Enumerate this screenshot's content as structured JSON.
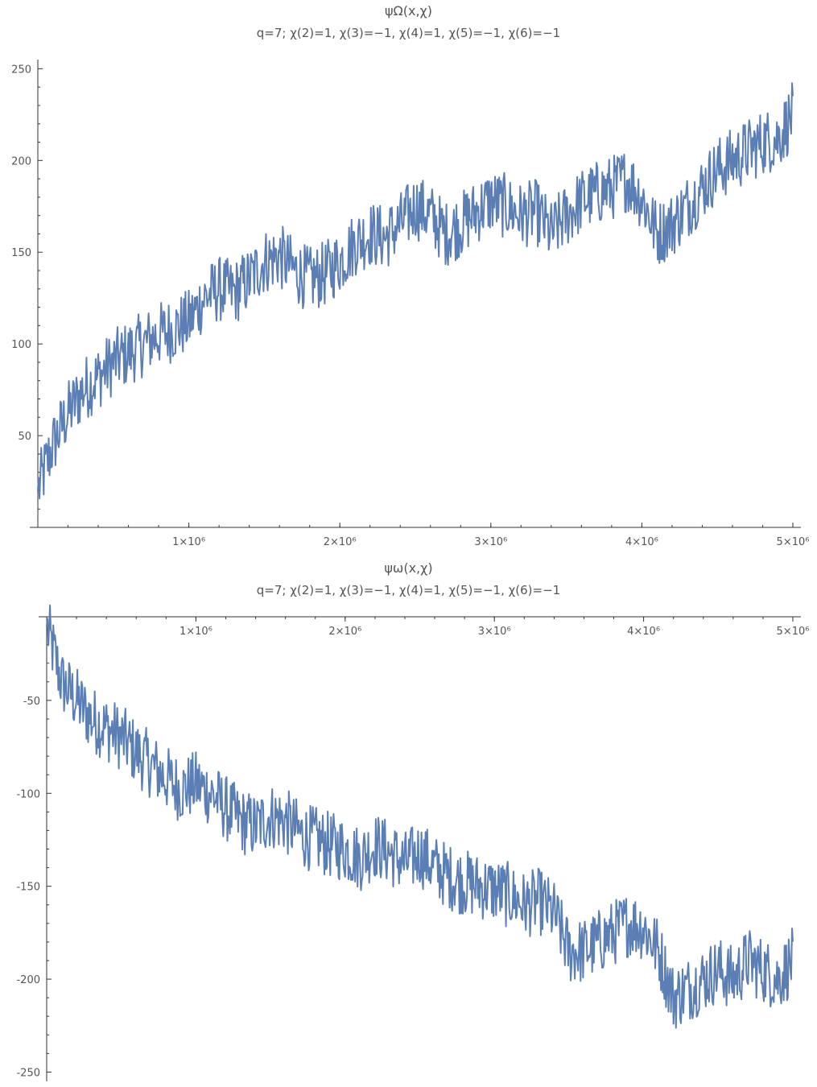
{
  "chart_data": [
    {
      "type": "line",
      "title": "ψΩ(x,χ)",
      "subtitle": "q=7; χ(2)=1, χ(3)=−1, χ(4)=1, χ(5)=−1, χ(6)=−1",
      "xlim": [
        0,
        5000000
      ],
      "ylim": [
        0,
        255
      ],
      "x_ticks": [
        {
          "value": 1000000,
          "label": "1×10⁶"
        },
        {
          "value": 2000000,
          "label": "2×10⁶"
        },
        {
          "value": 3000000,
          "label": "3×10⁶"
        },
        {
          "value": 4000000,
          "label": "4×10⁶"
        },
        {
          "value": 5000000,
          "label": "5×10⁶"
        }
      ],
      "y_ticks": [
        {
          "value": 50,
          "label": "50"
        },
        {
          "value": 100,
          "label": "100"
        },
        {
          "value": 150,
          "label": "150"
        },
        {
          "value": 200,
          "label": "200"
        },
        {
          "value": 250,
          "label": "250"
        }
      ],
      "color": "#5b7fb5",
      "series": [
        {
          "x": [
            0,
            100000,
            200000,
            300000,
            400000,
            500000,
            600000,
            700000,
            800000,
            900000,
            1000000,
            1100000,
            1200000,
            1300000,
            1400000,
            1500000,
            1600000,
            1700000,
            1800000,
            1900000,
            2000000,
            2100000,
            2200000,
            2300000,
            2400000,
            2500000,
            2600000,
            2700000,
            2800000,
            2900000,
            3000000,
            3100000,
            3200000,
            3300000,
            3400000,
            3500000,
            3600000,
            3700000,
            3800000,
            3900000,
            4000000,
            4100000,
            4200000,
            4300000,
            4400000,
            4500000,
            4600000,
            4700000,
            4800000,
            4900000,
            5000000
          ],
          "values": [
            20,
            45,
            62,
            75,
            82,
            90,
            95,
            100,
            105,
            108,
            112,
            125,
            130,
            128,
            135,
            145,
            148,
            140,
            135,
            138,
            145,
            155,
            160,
            158,
            165,
            175,
            170,
            160,
            165,
            172,
            178,
            175,
            170,
            172,
            160,
            170,
            178,
            182,
            185,
            190,
            180,
            160,
            165,
            175,
            185,
            195,
            200,
            205,
            210,
            212,
            225
          ]
        }
      ]
    },
    {
      "type": "line",
      "title": "ψω(x,χ)",
      "subtitle": "q=7; χ(2)=1, χ(3)=−1, χ(4)=1, χ(5)=−1, χ(6)=−1",
      "xlim": [
        0,
        5000000
      ],
      "ylim": [
        -255,
        -5
      ],
      "x_ticks": [
        {
          "value": 1000000,
          "label": "1×10⁶"
        },
        {
          "value": 2000000,
          "label": "2×10⁶"
        },
        {
          "value": 3000000,
          "label": "3×10⁶"
        },
        {
          "value": 4000000,
          "label": "4×10⁶"
        },
        {
          "value": 5000000,
          "label": "5×10⁶"
        }
      ],
      "y_ticks": [
        {
          "value": -50,
          "label": "-50"
        },
        {
          "value": -100,
          "label": "-100"
        },
        {
          "value": -150,
          "label": "-150"
        },
        {
          "value": -200,
          "label": "-200"
        },
        {
          "value": -250,
          "label": "-250"
        }
      ],
      "color": "#5b7fb5",
      "series": [
        {
          "x": [
            0,
            100000,
            200000,
            300000,
            400000,
            500000,
            600000,
            700000,
            800000,
            900000,
            1000000,
            1100000,
            1200000,
            1300000,
            1400000,
            1500000,
            1600000,
            1700000,
            1800000,
            1900000,
            2000000,
            2100000,
            2200000,
            2300000,
            2400000,
            2500000,
            2600000,
            2700000,
            2800000,
            2900000,
            3000000,
            3100000,
            3200000,
            3300000,
            3400000,
            3500000,
            3600000,
            3700000,
            3800000,
            3900000,
            4000000,
            4100000,
            4200000,
            4300000,
            4400000,
            4500000,
            4600000,
            4700000,
            4800000,
            4900000,
            5000000
          ],
          "values": [
            -10,
            -40,
            -50,
            -60,
            -65,
            -70,
            -78,
            -85,
            -92,
            -98,
            -95,
            -100,
            -108,
            -115,
            -118,
            -112,
            -115,
            -122,
            -125,
            -128,
            -130,
            -135,
            -128,
            -132,
            -138,
            -132,
            -140,
            -145,
            -148,
            -150,
            -152,
            -155,
            -160,
            -158,
            -165,
            -185,
            -185,
            -180,
            -175,
            -170,
            -172,
            -185,
            -210,
            -205,
            -200,
            -195,
            -200,
            -190,
            -195,
            -200,
            -190
          ]
        }
      ]
    }
  ]
}
